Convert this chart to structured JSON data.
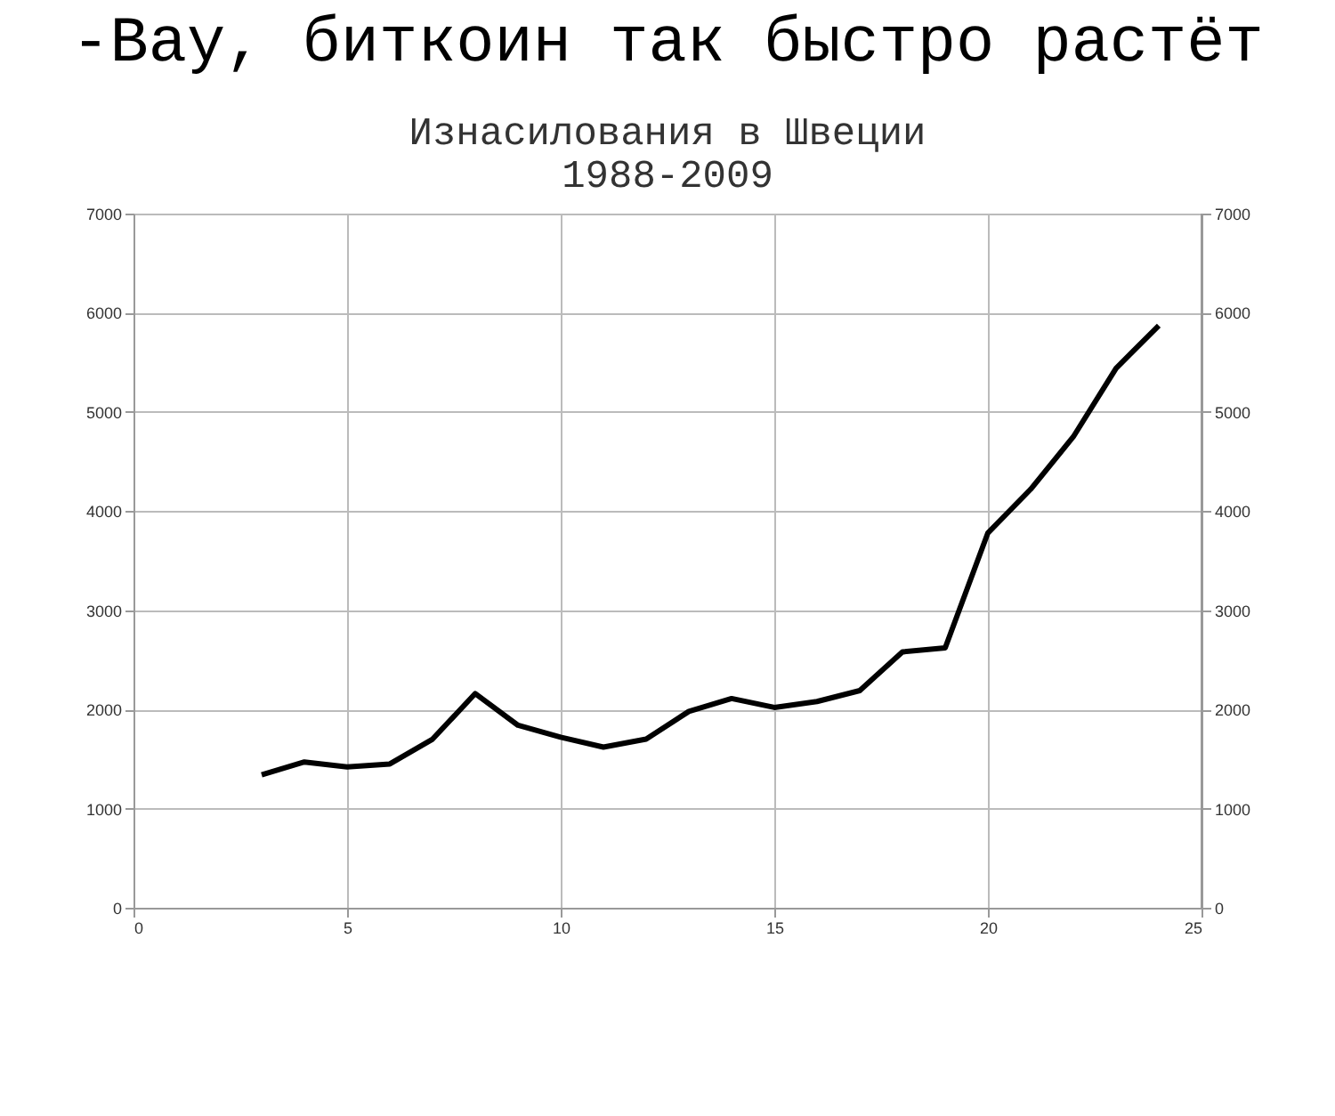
{
  "chart_data": {
    "type": "line",
    "title": "-Вау, биткоин так быстро растёт",
    "subtitle": "Изнасилования в Швеции\n1988-2009",
    "x": [
      3,
      4,
      5,
      6,
      7,
      8,
      9,
      10,
      11,
      12,
      13,
      14,
      15,
      16,
      17,
      18,
      19,
      20,
      21,
      22,
      23,
      24
    ],
    "series": [
      {
        "color": "#000000",
        "values": [
          1340,
          1470,
          1420,
          1450,
          1700,
          2160,
          1840,
          1720,
          1620,
          1700,
          1980,
          2110,
          2020,
          2080,
          2190,
          2580,
          2620,
          3780,
          4220,
          4750,
          5440,
          5870
        ]
      }
    ],
    "xlim": [
      0,
      25
    ],
    "xticks": [
      0,
      5,
      10,
      15,
      20,
      25
    ],
    "ylim": [
      0,
      7000
    ],
    "yticks": [
      0,
      1000,
      2000,
      3000,
      4000,
      5000,
      6000,
      7000
    ],
    "y2lim": [
      0,
      7000
    ],
    "y2ticks": [
      0,
      1000,
      2000,
      3000,
      4000,
      5000,
      6000,
      7000
    ],
    "grid": true,
    "marker": "none",
    "line_style": "solid"
  }
}
